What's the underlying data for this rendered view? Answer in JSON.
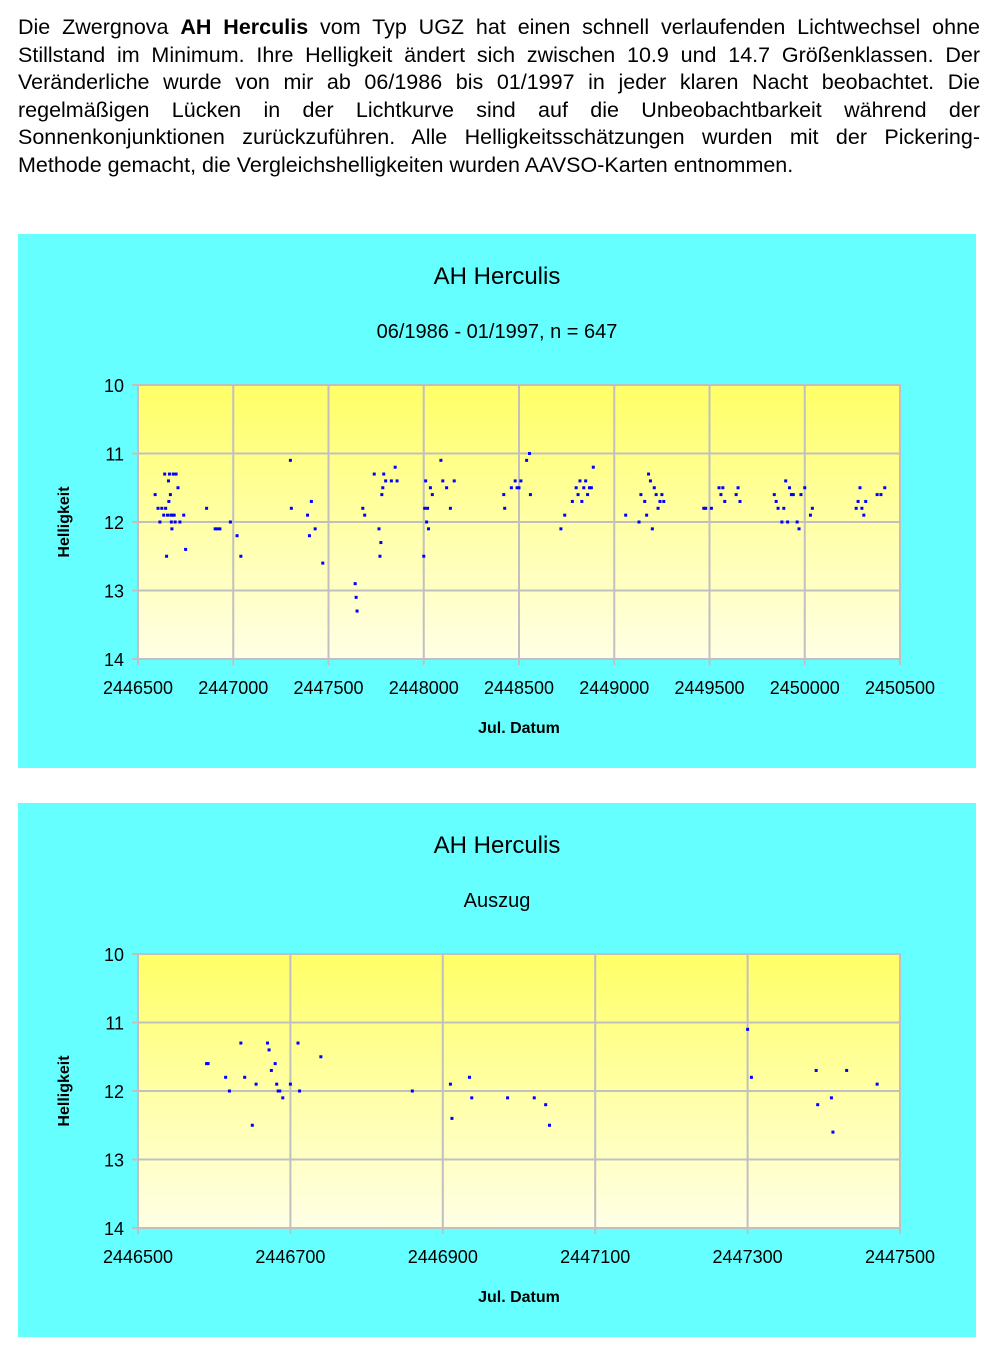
{
  "intro": {
    "t1": "Die Zwergnova ",
    "star": "AH Herculis",
    "t2": " vom Typ UGZ hat einen schnell verlaufenden Lichtwechsel ohne Stillstand im Minimum. Ihre Helligkeit ändert sich zwischen 10.9 und 14.7 Größenklassen. Der Veränderliche wurde von mir ab 06/1986 bis 01/1997 in jeder klaren Nacht beobachtet. Die regelmäßigen Lücken in der Lichtkurve sind auf die Unbeobachtbarkeit während der Sonnenkonjunktionen zurückzuführen. Alle Helligkeitsschätzungen wurden mit der Pickering-Methode gemacht, die Vergleichshelligkeiten wurden AAVSO-Karten entnommen."
  },
  "colors": {
    "panel": "#66ffff",
    "plot_top": "#ffff66",
    "plot_bottom": "#ffffe6",
    "points": "#0000ff",
    "grid": "#c0c0c0"
  },
  "chart_data": [
    {
      "type": "scatter",
      "title": "AH Herculis",
      "subtitle": "06/1986 - 01/1997, n = 647",
      "xlabel": "Jul. Datum",
      "ylabel": "Helligkeit",
      "xlim": [
        2446500,
        2450500
      ],
      "ylim": [
        14,
        10
      ],
      "y_inverted": true,
      "xticks": [
        2446500,
        2447000,
        2447500,
        2448000,
        2448500,
        2449000,
        2449500,
        2450000,
        2450500
      ],
      "yticks": [
        10,
        11,
        12,
        13,
        14
      ],
      "grid": true,
      "series": [
        {
          "x": [
            2446590,
            2446605,
            2446615,
            2446625,
            2446635,
            2446640,
            2446645,
            2446650,
            2446655,
            2446660,
            2446662,
            2446665,
            2446670,
            2446672,
            2446675,
            2446678,
            2446682,
            2446685,
            2446690,
            2446695,
            2446700,
            2446710,
            2446720,
            2446740,
            2446750,
            2446860,
            2446905,
            2446915,
            2446930,
            2446985,
            2447020,
            2447040,
            2447300,
            2447305,
            2447390,
            2447400,
            2447410,
            2447430,
            2447470,
            2447640,
            2447645,
            2447650,
            2447680,
            2447690,
            2447740,
            2447765,
            2447770,
            2447775,
            2447780,
            2447785,
            2447790,
            2447800,
            2447830,
            2447850,
            2447860,
            2448000,
            2448005,
            2448010,
            2448015,
            2448020,
            2448025,
            2448035,
            2448045,
            2448090,
            2448100,
            2448120,
            2448140,
            2448160,
            2448420,
            2448425,
            2448460,
            2448480,
            2448490,
            2448500,
            2448510,
            2448540,
            2448555,
            2448560,
            2448720,
            2448740,
            2448780,
            2448800,
            2448810,
            2448820,
            2448830,
            2448840,
            2448850,
            2448860,
            2448870,
            2448880,
            2448890,
            2449060,
            2449130,
            2449140,
            2449160,
            2449170,
            2449180,
            2449190,
            2449200,
            2449210,
            2449220,
            2449230,
            2449240,
            2449250,
            2449260,
            2449470,
            2449480,
            2449510,
            2449550,
            2449560,
            2449570,
            2449580,
            2449640,
            2449650,
            2449660,
            2449840,
            2449850,
            2449860,
            2449880,
            2449890,
            2449900,
            2449910,
            2449920,
            2449930,
            2449940,
            2449960,
            2449970,
            2449980,
            2450000,
            2450030,
            2450040,
            2450270,
            2450280,
            2450290,
            2450300,
            2450310,
            2450320,
            2450380,
            2450400,
            2450420
          ],
          "y": [
            11.6,
            11.8,
            12.0,
            11.8,
            11.9,
            11.3,
            11.8,
            12.5,
            11.9,
            11.4,
            11.7,
            11.3,
            11.6,
            11.9,
            12.0,
            12.1,
            11.9,
            11.3,
            11.9,
            12.0,
            11.3,
            11.5,
            12.0,
            11.9,
            12.4,
            11.8,
            12.1,
            12.1,
            12.1,
            12.0,
            12.2,
            12.5,
            11.1,
            11.8,
            11.9,
            12.2,
            11.7,
            12.1,
            12.6,
            12.9,
            13.1,
            13.3,
            11.8,
            11.9,
            11.3,
            12.1,
            12.5,
            12.3,
            11.6,
            11.5,
            11.3,
            11.4,
            11.4,
            11.2,
            11.4,
            12.5,
            11.8,
            11.4,
            12.0,
            11.8,
            12.1,
            11.5,
            11.6,
            11.1,
            11.4,
            11.5,
            11.8,
            11.4,
            11.6,
            11.8,
            11.5,
            11.4,
            11.5,
            11.5,
            11.4,
            11.1,
            11.0,
            11.6,
            12.1,
            11.9,
            11.7,
            11.5,
            11.6,
            11.4,
            11.7,
            11.5,
            11.4,
            11.6,
            11.5,
            11.5,
            11.2,
            11.9,
            12.0,
            11.6,
            11.7,
            11.9,
            11.3,
            11.4,
            12.1,
            11.5,
            11.6,
            11.8,
            11.7,
            11.6,
            11.7,
            11.8,
            11.8,
            11.8,
            11.5,
            11.6,
            11.5,
            11.7,
            11.6,
            11.5,
            11.7,
            11.6,
            11.7,
            11.8,
            12.0,
            11.8,
            11.4,
            12.0,
            11.5,
            11.6,
            11.6,
            12.0,
            12.1,
            11.6,
            11.5,
            11.9,
            11.8,
            11.8,
            11.7,
            11.5,
            11.8,
            11.9,
            11.7,
            11.6,
            11.6,
            11.5
          ]
        }
      ]
    },
    {
      "type": "scatter",
      "title": "AH Herculis",
      "subtitle": "Auszug",
      "xlabel": "Jul. Datum",
      "ylabel": "Helligkeit",
      "xlim": [
        2446500,
        2447500
      ],
      "ylim": [
        14,
        10
      ],
      "y_inverted": true,
      "xticks": [
        2446500,
        2446700,
        2446900,
        2447100,
        2447300,
        2447500
      ],
      "yticks": [
        10,
        11,
        12,
        13,
        14
      ],
      "grid": true,
      "series": [
        {
          "x": [
            2446590,
            2446592,
            2446615,
            2446620,
            2446635,
            2446640,
            2446650,
            2446655,
            2446670,
            2446672,
            2446675,
            2446680,
            2446682,
            2446684,
            2446686,
            2446690,
            2446700,
            2446710,
            2446712,
            2446740,
            2446860,
            2446910,
            2446912,
            2446935,
            2446938,
            2446985,
            2447020,
            2447035,
            2447040,
            2447300,
            2447305,
            2447390,
            2447392,
            2447410,
            2447412,
            2447430,
            2447470
          ],
          "y": [
            11.6,
            11.6,
            11.8,
            12.0,
            11.3,
            11.8,
            12.5,
            11.9,
            11.3,
            11.4,
            11.7,
            11.6,
            11.9,
            12.0,
            12.0,
            12.1,
            11.9,
            11.3,
            12.0,
            11.5,
            12.0,
            11.9,
            12.4,
            11.8,
            12.1,
            12.1,
            12.1,
            12.2,
            12.5,
            11.1,
            11.8,
            11.7,
            12.2,
            12.1,
            12.6,
            11.7,
            11.9
          ]
        }
      ]
    }
  ]
}
